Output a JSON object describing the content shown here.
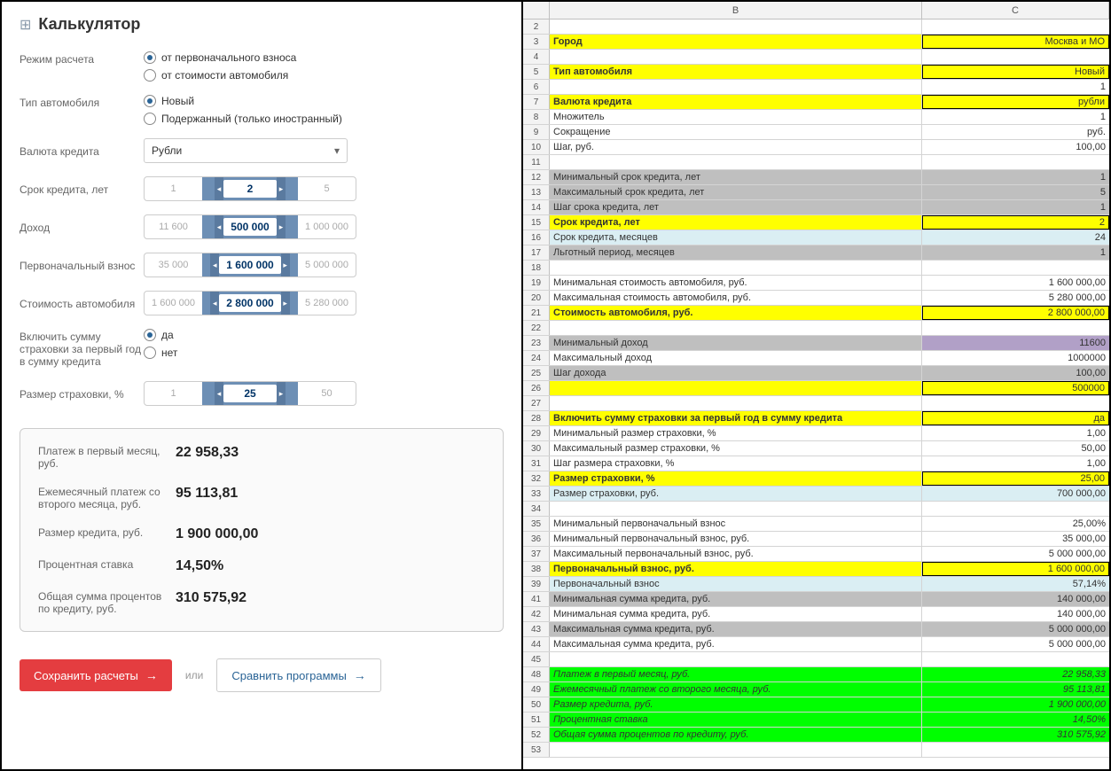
{
  "calc": {
    "title": "Калькулятор",
    "mode_label": "Режим расчета",
    "mode_opt1": "от первоначального взноса",
    "mode_opt2": "от стоимости автомобиля",
    "cartype_label": "Тип автомобиля",
    "cartype_opt1": "Новый",
    "cartype_opt2": "Подержанный (только иностранный)",
    "currency_label": "Валюта кредита",
    "currency_value": "Рубли",
    "term_label": "Срок кредита, лет",
    "term_min": "1",
    "term_val": "2",
    "term_max": "5",
    "income_label": "Доход",
    "income_min": "11 600",
    "income_val": "500 000",
    "income_max": "1 000 000",
    "down_label": "Первоначальный взнос",
    "down_min": "35 000",
    "down_val": "1 600 000",
    "down_max": "5 000 000",
    "cost_label": "Стоимость автомобиля",
    "cost_min": "1 600 000",
    "cost_val": "2 800 000",
    "cost_max": "5 280 000",
    "ins_include_label": "Включить сумму страховки за первый год в сумму кредита",
    "ins_yes": "да",
    "ins_no": "нет",
    "ins_size_label": "Размер страховки, %",
    "ins_min": "1",
    "ins_val": "25",
    "ins_max": "50",
    "res1_label": "Платеж в первый месяц, руб.",
    "res1_val": "22 958,33",
    "res2_label": "Ежемесячный платеж со второго месяца, руб.",
    "res2_val": "95 113,81",
    "res3_label": "Размер кредита, руб.",
    "res3_val": "1 900 000,00",
    "res4_label": "Процентная ставка",
    "res4_val": "14,50%",
    "res5_label": "Общая сумма процентов по кредиту, руб.",
    "res5_val": "310 575,92",
    "btn_save": "Сохранить расчеты",
    "btn_or": "или",
    "btn_compare": "Сравнить программы"
  },
  "sheet": {
    "col_b": "B",
    "col_c": "C",
    "rows": [
      {
        "n": "2",
        "b": "",
        "c": ""
      },
      {
        "n": "3",
        "b": "Город",
        "c": "Москва и МО",
        "bg": "yellow",
        "bold": true,
        "box": true
      },
      {
        "n": "4",
        "b": "",
        "c": ""
      },
      {
        "n": "5",
        "b": "Тип автомобиля",
        "c": "Новый",
        "bg": "yellow",
        "bold": true,
        "box": true
      },
      {
        "n": "6",
        "b": "",
        "c": "1"
      },
      {
        "n": "7",
        "b": "Валюта кредита",
        "c": "рубли",
        "bg": "yellow",
        "bold": true,
        "box": true
      },
      {
        "n": "8",
        "b": "Множитель",
        "c": "1"
      },
      {
        "n": "9",
        "b": "Сокращение",
        "c": "руб."
      },
      {
        "n": "10",
        "b": "Шаг, руб.",
        "c": "100,00"
      },
      {
        "n": "11",
        "b": "",
        "c": ""
      },
      {
        "n": "12",
        "b": "Минимальный срок кредита, лет",
        "c": "1",
        "bg": "gray"
      },
      {
        "n": "13",
        "b": "Максимальный срок кредита, лет",
        "c": "5",
        "bg": "gray"
      },
      {
        "n": "14",
        "b": "Шаг срока кредита, лет",
        "c": "1",
        "bg": "gray"
      },
      {
        "n": "15",
        "b": "Срок кредита, лет",
        "c": "2",
        "bg": "yellow",
        "bold": true,
        "box": true
      },
      {
        "n": "16",
        "b": "Срок кредита, месяцев",
        "c": "24",
        "bg": "cyan"
      },
      {
        "n": "17",
        "b": "Льготный период, месяцев",
        "c": "1",
        "bg": "gray"
      },
      {
        "n": "18",
        "b": "",
        "c": ""
      },
      {
        "n": "19",
        "b": "Минимальная стоимость автомобиля, руб.",
        "c": "1 600 000,00"
      },
      {
        "n": "20",
        "b": "Максимальная стоимость автомобиля, руб.",
        "c": "5 280 000,00"
      },
      {
        "n": "21",
        "b": "Стоимость автомобиля, руб.",
        "c": "2 800 000,00",
        "bg": "yellow",
        "bold": true,
        "box": true
      },
      {
        "n": "22",
        "b": "",
        "c": ""
      },
      {
        "n": "23",
        "b": "Минимальный доход",
        "c": "11600",
        "bg": "gray",
        "cbg": "purple"
      },
      {
        "n": "24",
        "b": "Максимальный доход",
        "c": "1000000"
      },
      {
        "n": "25",
        "b": "Шаг дохода",
        "c": "100,00",
        "bg": "gray"
      },
      {
        "n": "26",
        "b": "",
        "c": "500000",
        "bg": "yellow",
        "bold": true,
        "box": true
      },
      {
        "n": "27",
        "b": "",
        "c": ""
      },
      {
        "n": "28",
        "b": "Включить сумму страховки за первый год в сумму кредита",
        "c": "да",
        "bg": "yellow",
        "bold": true,
        "box": true
      },
      {
        "n": "29",
        "b": "Минимальный размер страховки, %",
        "c": "1,00"
      },
      {
        "n": "30",
        "b": "Максимальный размер страховки, %",
        "c": "50,00"
      },
      {
        "n": "31",
        "b": "Шаг размера страховки, %",
        "c": "1,00"
      },
      {
        "n": "32",
        "b": "Размер страховки, %",
        "c": "25,00",
        "bg": "yellow",
        "bold": true,
        "box": true
      },
      {
        "n": "33",
        "b": "Размер страховки, руб.",
        "c": "700 000,00",
        "bg": "cyan"
      },
      {
        "n": "34",
        "b": "",
        "c": ""
      },
      {
        "n": "35",
        "b": "Минимальный первоначальный взнос",
        "c": "25,00%"
      },
      {
        "n": "36",
        "b": "Минимальный первоначальный взнос, руб.",
        "c": "35 000,00"
      },
      {
        "n": "37",
        "b": "Максимальный первоначальный взнос, руб.",
        "c": "5 000 000,00"
      },
      {
        "n": "38",
        "b": "Первоначальный взнос, руб.",
        "c": "1 600 000,00",
        "bg": "yellow",
        "bold": true,
        "box": true
      },
      {
        "n": "39",
        "b": "Первоначальный взнос",
        "c": "57,14%",
        "bg": "cyan"
      },
      {
        "n": "41",
        "b": "Минимальная сумма кредита, руб.",
        "c": "140 000,00",
        "bg": "gray"
      },
      {
        "n": "42",
        "b": "Минимальная сумма кредита, руб.",
        "c": "140 000,00"
      },
      {
        "n": "43",
        "b": "Максимальная сумма кредита, руб.",
        "c": "5 000 000,00",
        "bg": "gray"
      },
      {
        "n": "44",
        "b": "Максимальная сумма кредита, руб.",
        "c": "5 000 000,00"
      },
      {
        "n": "45",
        "b": "",
        "c": ""
      },
      {
        "n": "48",
        "b": "Платеж в первый месяц, руб.",
        "c": "22 958,33",
        "bg": "green",
        "italic": true
      },
      {
        "n": "49",
        "b": "Ежемесячный платеж со второго месяца, руб.",
        "c": "95 113,81",
        "bg": "green",
        "italic": true
      },
      {
        "n": "50",
        "b": "Размер кредита, руб.",
        "c": "1 900 000,00",
        "bg": "green",
        "italic": true
      },
      {
        "n": "51",
        "b": "Процентная ставка",
        "c": "14,50%",
        "bg": "green",
        "italic": true
      },
      {
        "n": "52",
        "b": "Общая сумма процентов по кредиту, руб.",
        "c": "310 575,92",
        "bg": "green",
        "italic": true
      },
      {
        "n": "53",
        "b": "",
        "c": ""
      }
    ]
  }
}
